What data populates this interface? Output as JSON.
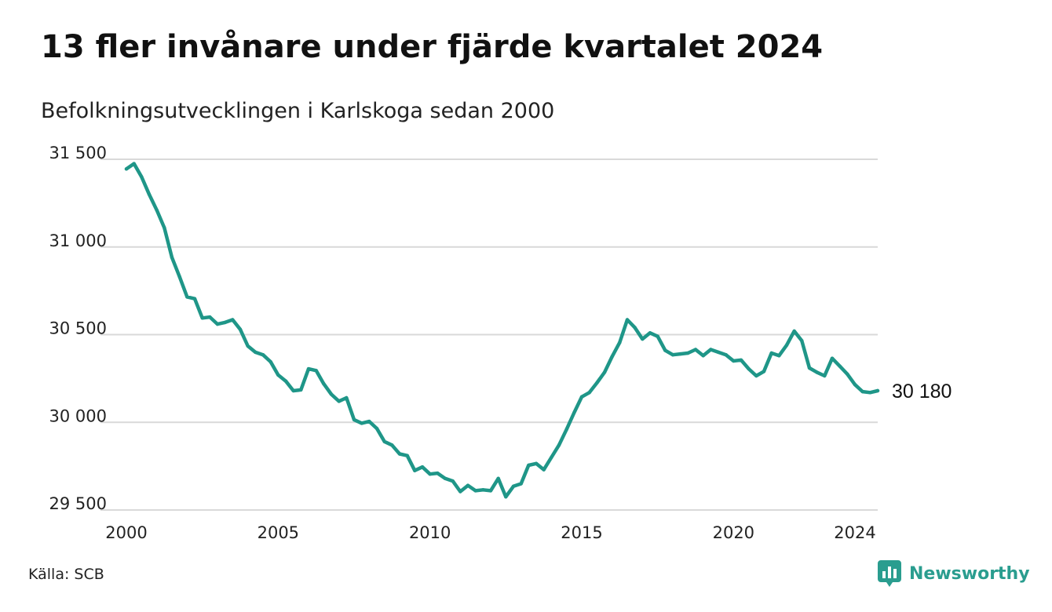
{
  "header": {
    "title": "13 fler invånare under fjärde kvartalet 2024",
    "subtitle": "Befolkningsutvecklingen i Karlskoga sedan 2000"
  },
  "footer": {
    "source": "Källa: SCB",
    "brand": "Newsworthy"
  },
  "colors": {
    "line": "#1f9688",
    "grid": "#d9d9d9",
    "brand": "#2a9d8f"
  },
  "chart_data": {
    "type": "line",
    "title": "13 fler invånare under fjärde kvartalet 2024",
    "subtitle": "Befolkningsutvecklingen i Karlskoga sedan 2000",
    "xlabel": "",
    "ylabel": "",
    "grid": true,
    "xlim": [
      2000.0,
      2024.75
    ],
    "ylim": [
      29500,
      31500
    ],
    "x_ticks": [
      2000,
      2005,
      2010,
      2015,
      2020,
      2024
    ],
    "x_tick_labels": [
      "2000",
      "2005",
      "2010",
      "2015",
      "2020",
      "2024"
    ],
    "y_ticks": [
      29500,
      30000,
      30500,
      31000,
      31500
    ],
    "y_tick_labels": [
      "29 500",
      "30 000",
      "30 500",
      "31 000",
      "31 500"
    ],
    "end_label": "30 180",
    "series": [
      {
        "values": [
          [
            2000.0,
            31445
          ],
          [
            2000.25,
            31475
          ],
          [
            2000.5,
            31400
          ],
          [
            2000.75,
            31300
          ],
          [
            2001.0,
            31210
          ],
          [
            2001.25,
            31110
          ],
          [
            2001.5,
            30940
          ],
          [
            2001.75,
            30830
          ],
          [
            2002.0,
            30715
          ],
          [
            2002.25,
            30705
          ],
          [
            2002.5,
            30595
          ],
          [
            2002.75,
            30600
          ],
          [
            2003.0,
            30560
          ],
          [
            2003.25,
            30570
          ],
          [
            2003.5,
            30585
          ],
          [
            2003.75,
            30530
          ],
          [
            2004.0,
            30435
          ],
          [
            2004.25,
            30400
          ],
          [
            2004.5,
            30385
          ],
          [
            2004.75,
            30345
          ],
          [
            2005.0,
            30270
          ],
          [
            2005.25,
            30235
          ],
          [
            2005.5,
            30180
          ],
          [
            2005.75,
            30185
          ],
          [
            2006.0,
            30305
          ],
          [
            2006.25,
            30295
          ],
          [
            2006.5,
            30220
          ],
          [
            2006.75,
            30160
          ],
          [
            2007.0,
            30120
          ],
          [
            2007.25,
            30140
          ],
          [
            2007.5,
            30015
          ],
          [
            2007.75,
            29995
          ],
          [
            2008.0,
            30005
          ],
          [
            2008.25,
            29965
          ],
          [
            2008.5,
            29890
          ],
          [
            2008.75,
            29870
          ],
          [
            2009.0,
            29820
          ],
          [
            2009.25,
            29810
          ],
          [
            2009.5,
            29725
          ],
          [
            2009.75,
            29745
          ],
          [
            2010.0,
            29705
          ],
          [
            2010.25,
            29710
          ],
          [
            2010.5,
            29680
          ],
          [
            2010.75,
            29665
          ],
          [
            2011.0,
            29605
          ],
          [
            2011.25,
            29640
          ],
          [
            2011.5,
            29610
          ],
          [
            2011.75,
            29615
          ],
          [
            2012.0,
            29610
          ],
          [
            2012.25,
            29680
          ],
          [
            2012.5,
            29575
          ],
          [
            2012.75,
            29635
          ],
          [
            2013.0,
            29650
          ],
          [
            2013.25,
            29755
          ],
          [
            2013.5,
            29765
          ],
          [
            2013.75,
            29730
          ],
          [
            2014.0,
            29800
          ],
          [
            2014.25,
            29870
          ],
          [
            2014.5,
            29960
          ],
          [
            2014.75,
            30055
          ],
          [
            2015.0,
            30145
          ],
          [
            2015.25,
            30170
          ],
          [
            2015.5,
            30225
          ],
          [
            2015.75,
            30285
          ],
          [
            2016.0,
            30375
          ],
          [
            2016.25,
            30455
          ],
          [
            2016.5,
            30585
          ],
          [
            2016.75,
            30540
          ],
          [
            2017.0,
            30475
          ],
          [
            2017.25,
            30510
          ],
          [
            2017.5,
            30490
          ],
          [
            2017.75,
            30410
          ],
          [
            2018.0,
            30385
          ],
          [
            2018.25,
            30390
          ],
          [
            2018.5,
            30395
          ],
          [
            2018.75,
            30415
          ],
          [
            2019.0,
            30380
          ],
          [
            2019.25,
            30415
          ],
          [
            2019.5,
            30400
          ],
          [
            2019.75,
            30385
          ],
          [
            2020.0,
            30350
          ],
          [
            2020.25,
            30355
          ],
          [
            2020.5,
            30305
          ],
          [
            2020.75,
            30265
          ],
          [
            2021.0,
            30290
          ],
          [
            2021.25,
            30395
          ],
          [
            2021.5,
            30380
          ],
          [
            2021.75,
            30440
          ],
          [
            2022.0,
            30520
          ],
          [
            2022.25,
            30465
          ],
          [
            2022.5,
            30310
          ],
          [
            2022.75,
            30285
          ],
          [
            2023.0,
            30265
          ],
          [
            2023.25,
            30365
          ],
          [
            2023.5,
            30320
          ],
          [
            2023.75,
            30275
          ],
          [
            2024.0,
            30215
          ],
          [
            2024.25,
            30175
          ],
          [
            2024.5,
            30170
          ],
          [
            2024.75,
            30180
          ]
        ]
      }
    ]
  }
}
